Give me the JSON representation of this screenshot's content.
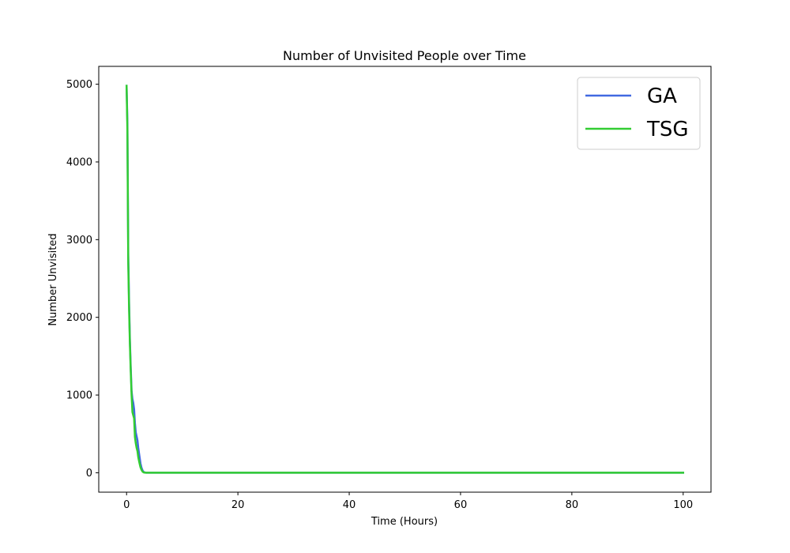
{
  "chart_data": {
    "type": "line",
    "title": "Number of Unvisited People over Time",
    "xlabel": "Time (Hours)",
    "ylabel": "Number Unvisited",
    "xlim": [
      -5,
      105
    ],
    "ylim": [
      -250,
      5230
    ],
    "xticks": [
      0,
      20,
      40,
      60,
      80,
      100
    ],
    "yticks": [
      0,
      1000,
      2000,
      3000,
      4000,
      5000
    ],
    "grid": false,
    "legend_position": "top-right",
    "series": [
      {
        "name": "GA",
        "color": "#4169e1",
        "x": [
          0,
          0.15,
          0.3,
          0.45,
          0.6,
          0.75,
          0.9,
          1.05,
          1.2,
          1.35,
          1.5,
          1.65,
          1.8,
          1.95,
          2.1,
          2.3,
          2.5,
          2.7,
          2.9,
          3.1,
          3.5,
          5,
          10,
          20,
          40,
          60,
          80,
          100
        ],
        "y": [
          4980,
          4500,
          2800,
          2200,
          1700,
          1350,
          1050,
          950,
          900,
          820,
          640,
          520,
          470,
          420,
          320,
          220,
          120,
          60,
          25,
          8,
          0,
          0,
          0,
          0,
          0,
          0,
          0,
          0
        ]
      },
      {
        "name": "TSG",
        "color": "#32cd32",
        "x": [
          0,
          0.15,
          0.3,
          0.45,
          0.6,
          0.75,
          0.9,
          1.05,
          1.2,
          1.35,
          1.5,
          1.65,
          1.8,
          1.95,
          2.1,
          2.3,
          2.5,
          2.7,
          2.9,
          3.1,
          3.5,
          5,
          10,
          20,
          40,
          60,
          80,
          100
        ],
        "y": [
          4980,
          4400,
          2700,
          2100,
          1650,
          1300,
          1000,
          780,
          740,
          700,
          460,
          380,
          320,
          280,
          200,
          130,
          70,
          35,
          12,
          3,
          0,
          0,
          0,
          0,
          0,
          0,
          0,
          0
        ]
      }
    ]
  }
}
